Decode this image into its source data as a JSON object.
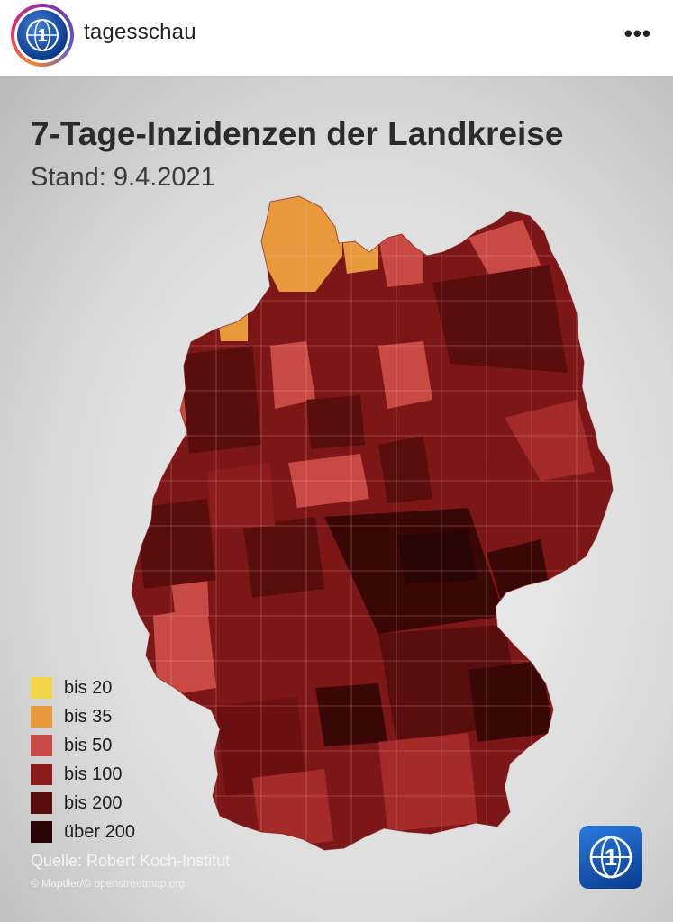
{
  "header": {
    "account_name": "tagesschau",
    "avatar_icon": "tagesschau-logo-icon",
    "more_icon": "more-horizontal-icon",
    "more_label": "•••"
  },
  "map": {
    "title": "7-Tage-Inzidenzen der Landkreise",
    "subtitle": "Stand: 9.4.2021",
    "source": "Quelle: Robert Koch-Institut",
    "copyright": "© Maptiler/© openstreetmap.org",
    "legend": [
      {
        "label": "bis 20",
        "color": "#f2d648"
      },
      {
        "label": "bis 35",
        "color": "#e8993c"
      },
      {
        "label": "bis 50",
        "color": "#c94a44"
      },
      {
        "label": "bis 100",
        "color": "#8c1b1b"
      },
      {
        "label": "bis 200",
        "color": "#5a0d0d"
      },
      {
        "label": "über 200",
        "color": "#2a0505"
      }
    ],
    "brand_icon": "tagesschau-logo-icon"
  }
}
